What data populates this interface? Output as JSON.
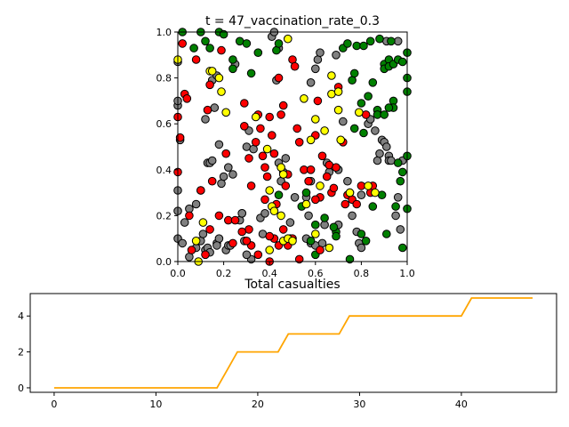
{
  "chart_data": [
    {
      "type": "scatter",
      "title": "t = 47_vaccination_rate_0.3",
      "xlim": [
        0,
        1
      ],
      "ylim": [
        0,
        1
      ],
      "xticks": [
        "0.0",
        "0.2",
        "0.4",
        "0.6",
        "0.8",
        "1.0"
      ],
      "yticks": [
        "0.0",
        "0.2",
        "0.4",
        "0.6",
        "0.8",
        "1.0"
      ],
      "colors": {
        "infected": "#ff0000",
        "vaccinated": "#008000",
        "recovered": "#ffff00",
        "susceptible": "#808080",
        "edge": "#000000"
      },
      "points": {
        "infected": [
          [
            0.02,
            0.95
          ],
          [
            0.03,
            0.73
          ],
          [
            0.04,
            0.71
          ],
          [
            0.08,
            0.88
          ],
          [
            0.13,
            0.66
          ],
          [
            0.14,
            0.77
          ],
          [
            0.15,
            0.35
          ],
          [
            0.19,
            0.92
          ],
          [
            0.21,
            0.47
          ],
          [
            0.22,
            0.18
          ],
          [
            0.24,
            0.08
          ],
          [
            0.29,
            0.69
          ],
          [
            0.29,
            0.59
          ],
          [
            0.31,
            0.45
          ],
          [
            0.32,
            0.33
          ],
          [
            0.34,
            0.52
          ],
          [
            0.35,
            0.64
          ],
          [
            0.36,
            0.58
          ],
          [
            0.37,
            0.46
          ],
          [
            0.38,
            0.41
          ],
          [
            0.39,
            0.37
          ],
          [
            0.4,
            0.63
          ],
          [
            0.41,
            0.55
          ],
          [
            0.42,
            0.47
          ],
          [
            0.44,
            0.8
          ],
          [
            0.45,
            0.64
          ],
          [
            0.46,
            0.68
          ],
          [
            0.47,
            0.33
          ],
          [
            0.48,
            0.38
          ],
          [
            0.5,
            0.88
          ],
          [
            0.51,
            0.85
          ],
          [
            0.52,
            0.58
          ],
          [
            0.53,
            0.52
          ],
          [
            0.55,
            0.4
          ],
          [
            0.58,
            0.4
          ],
          [
            0.6,
            0.55
          ],
          [
            0.61,
            0.7
          ],
          [
            0.62,
            0.28
          ],
          [
            0.63,
            0.46
          ],
          [
            0.65,
            0.37
          ],
          [
            0.66,
            0.42
          ],
          [
            0.67,
            0.3
          ],
          [
            0.68,
            0.32
          ],
          [
            0.69,
            0.41
          ],
          [
            0.7,
            0.76
          ],
          [
            0.72,
            0.52
          ],
          [
            0.73,
            0.25
          ],
          [
            0.74,
            0.29
          ],
          [
            0.76,
            0.27
          ],
          [
            0.78,
            0.25
          ],
          [
            0.8,
            0.33
          ],
          [
            0.82,
            0.64
          ],
          [
            0.84,
            0.3
          ],
          [
            0.85,
            0.33
          ],
          [
            0.31,
            0.14
          ],
          [
            0.32,
            0.07
          ],
          [
            0.35,
            0.03
          ],
          [
            0.4,
            0.0
          ],
          [
            0.42,
            0.1
          ],
          [
            0.44,
            0.07
          ],
          [
            0.46,
            0.14
          ],
          [
            0.48,
            0.07
          ],
          [
            0.5,
            0.1
          ],
          [
            0.53,
            0.01
          ],
          [
            0.57,
            0.35
          ],
          [
            0.6,
            0.27
          ],
          [
            0.05,
            0.2
          ],
          [
            0.06,
            0.05
          ],
          [
            0.1,
            0.31
          ],
          [
            0.14,
            0.14
          ],
          [
            0.18,
            0.2
          ],
          [
            0.28,
            0.13
          ],
          [
            0.3,
            0.09
          ],
          [
            0.38,
            0.27
          ],
          [
            0.4,
            0.11
          ],
          [
            0.43,
            0.25
          ],
          [
            0.12,
            0.03
          ],
          [
            0.01,
            0.54
          ],
          [
            0.0,
            0.63
          ],
          [
            0.0,
            0.39
          ],
          [
            0.62,
            0.05
          ],
          [
            0.25,
            0.18
          ]
        ],
        "vaccinated": [
          [
            0.02,
            1.0
          ],
          [
            0.07,
            0.93
          ],
          [
            0.1,
            1.0
          ],
          [
            0.12,
            0.96
          ],
          [
            0.14,
            0.93
          ],
          [
            0.18,
            1.0
          ],
          [
            0.2,
            0.99
          ],
          [
            0.24,
            0.88
          ],
          [
            0.24,
            0.84
          ],
          [
            0.27,
            0.96
          ],
          [
            0.3,
            0.95
          ],
          [
            0.32,
            0.82
          ],
          [
            0.35,
            0.91
          ],
          [
            0.43,
            0.92
          ],
          [
            0.44,
            0.95
          ],
          [
            0.72,
            0.93
          ],
          [
            0.74,
            0.95
          ],
          [
            0.78,
            0.94
          ],
          [
            0.76,
            0.79
          ],
          [
            0.77,
            0.82
          ],
          [
            0.81,
            0.94
          ],
          [
            0.84,
            0.96
          ],
          [
            0.85,
            0.78
          ],
          [
            0.88,
            0.97
          ],
          [
            0.9,
            0.86
          ],
          [
            0.9,
            0.84
          ],
          [
            0.92,
            0.88
          ],
          [
            0.92,
            0.85
          ],
          [
            0.93,
            0.96
          ],
          [
            0.94,
            0.86
          ],
          [
            0.96,
            0.88
          ],
          [
            0.98,
            0.87
          ],
          [
            1.0,
            0.91
          ],
          [
            1.0,
            0.8
          ],
          [
            1.0,
            0.74
          ],
          [
            0.94,
            0.7
          ],
          [
            0.94,
            0.67
          ],
          [
            0.92,
            0.67
          ],
          [
            0.87,
            0.66
          ],
          [
            0.87,
            0.64
          ],
          [
            0.83,
            0.72
          ],
          [
            0.8,
            0.69
          ],
          [
            0.81,
            0.56
          ],
          [
            0.77,
            0.58
          ],
          [
            0.9,
            0.64
          ],
          [
            0.96,
            0.43
          ],
          [
            0.98,
            0.39
          ],
          [
            1.0,
            0.46
          ],
          [
            0.97,
            0.35
          ],
          [
            0.95,
            0.24
          ],
          [
            1.0,
            0.23
          ],
          [
            0.98,
            0.06
          ],
          [
            0.91,
            0.12
          ],
          [
            0.89,
            0.29
          ],
          [
            0.8,
            0.12
          ],
          [
            0.75,
            0.01
          ],
          [
            0.69,
            0.13
          ],
          [
            0.69,
            0.11
          ],
          [
            0.64,
            0.19
          ],
          [
            0.6,
            0.16
          ],
          [
            0.56,
            0.3
          ],
          [
            0.44,
            0.29
          ],
          [
            0.6,
            0.03
          ],
          [
            0.68,
            0.15
          ],
          [
            0.82,
            0.09
          ],
          [
            0.85,
            0.24
          ],
          [
            0.54,
            0.24
          ],
          [
            0.58,
            0.09
          ]
        ],
        "recovered": [
          [
            0.0,
            0.88
          ],
          [
            0.14,
            0.83
          ],
          [
            0.15,
            0.83
          ],
          [
            0.18,
            0.8
          ],
          [
            0.19,
            0.74
          ],
          [
            0.21,
            0.65
          ],
          [
            0.34,
            0.63
          ],
          [
            0.39,
            0.49
          ],
          [
            0.45,
            0.41
          ],
          [
            0.46,
            0.38
          ],
          [
            0.48,
            0.97
          ],
          [
            0.55,
            0.71
          ],
          [
            0.58,
            0.53
          ],
          [
            0.6,
            0.62
          ],
          [
            0.64,
            0.57
          ],
          [
            0.67,
            0.81
          ],
          [
            0.67,
            0.73
          ],
          [
            0.7,
            0.74
          ],
          [
            0.7,
            0.66
          ],
          [
            0.71,
            0.53
          ],
          [
            0.75,
            0.3
          ],
          [
            0.79,
            0.65
          ],
          [
            0.83,
            0.33
          ],
          [
            0.86,
            0.3
          ],
          [
            0.4,
            0.31
          ],
          [
            0.41,
            0.24
          ],
          [
            0.42,
            0.22
          ],
          [
            0.45,
            0.2
          ],
          [
            0.46,
            0.09
          ],
          [
            0.48,
            0.1
          ],
          [
            0.5,
            0.09
          ],
          [
            0.56,
            0.25
          ],
          [
            0.6,
            0.12
          ],
          [
            0.62,
            0.33
          ],
          [
            0.11,
            0.17
          ],
          [
            0.08,
            0.09
          ],
          [
            0.09,
            0.0
          ],
          [
            0.4,
            0.05
          ],
          [
            0.66,
            0.06
          ]
        ],
        "susceptible": [
          [
            0.0,
            0.87
          ],
          [
            0.0,
            0.68
          ],
          [
            0.0,
            0.7
          ],
          [
            0.01,
            0.53
          ],
          [
            0.0,
            0.31
          ],
          [
            0.0,
            0.22
          ],
          [
            0.0,
            0.1
          ],
          [
            0.02,
            0.08
          ],
          [
            0.05,
            0.23
          ],
          [
            0.08,
            0.25
          ],
          [
            0.1,
            0.09
          ],
          [
            0.12,
            0.62
          ],
          [
            0.13,
            0.43
          ],
          [
            0.14,
            0.43
          ],
          [
            0.15,
            0.79
          ],
          [
            0.15,
            0.44
          ],
          [
            0.16,
            0.67
          ],
          [
            0.17,
            0.81
          ],
          [
            0.18,
            0.51
          ],
          [
            0.19,
            0.34
          ],
          [
            0.2,
            0.37
          ],
          [
            0.21,
            0.05
          ],
          [
            0.22,
            0.07
          ],
          [
            0.23,
            0.07
          ],
          [
            0.24,
            0.38
          ],
          [
            0.25,
            0.86
          ],
          [
            0.27,
            0.18
          ],
          [
            0.28,
            0.21
          ],
          [
            0.3,
            0.5
          ],
          [
            0.31,
            0.57
          ],
          [
            0.33,
            0.49
          ],
          [
            0.36,
            0.19
          ],
          [
            0.37,
            0.12
          ],
          [
            0.38,
            0.21
          ],
          [
            0.41,
            0.98
          ],
          [
            0.42,
            1.0
          ],
          [
            0.43,
            0.79
          ],
          [
            0.44,
            0.93
          ],
          [
            0.44,
            0.43
          ],
          [
            0.45,
            0.35
          ],
          [
            0.46,
            0.39
          ],
          [
            0.47,
            0.45
          ],
          [
            0.49,
            0.17
          ],
          [
            0.49,
            0.1
          ],
          [
            0.51,
            0.28
          ],
          [
            0.56,
            0.28
          ],
          [
            0.58,
            0.35
          ],
          [
            0.58,
            0.08
          ],
          [
            0.6,
            0.84
          ],
          [
            0.6,
            0.07
          ],
          [
            0.61,
            0.88
          ],
          [
            0.62,
            0.91
          ],
          [
            0.63,
            0.08
          ],
          [
            0.64,
            0.16
          ],
          [
            0.65,
            0.43
          ],
          [
            0.66,
            0.39
          ],
          [
            0.69,
            0.9
          ],
          [
            0.7,
            0.4
          ],
          [
            0.7,
            0.16
          ],
          [
            0.72,
            0.61
          ],
          [
            0.74,
            0.35
          ],
          [
            0.75,
            0.3
          ],
          [
            0.76,
            0.2
          ],
          [
            0.78,
            0.13
          ],
          [
            0.79,
            0.08
          ],
          [
            0.8,
            0.06
          ],
          [
            0.8,
            0.29
          ],
          [
            0.83,
            0.6
          ],
          [
            0.84,
            0.62
          ],
          [
            0.86,
            0.57
          ],
          [
            0.87,
            0.44
          ],
          [
            0.88,
            0.47
          ],
          [
            0.89,
            0.53
          ],
          [
            0.9,
            0.52
          ],
          [
            0.91,
            0.5
          ],
          [
            0.92,
            0.46
          ],
          [
            0.92,
            0.44
          ],
          [
            0.93,
            0.44
          ],
          [
            0.95,
            0.2
          ],
          [
            0.96,
            0.28
          ],
          [
            0.97,
            0.14
          ],
          [
            0.98,
            0.44
          ],
          [
            0.1,
            0.31
          ],
          [
            0.03,
            0.17
          ],
          [
            0.11,
            0.12
          ],
          [
            0.08,
            0.06
          ],
          [
            0.12,
            0.05
          ],
          [
            0.17,
            0.08
          ],
          [
            0.18,
            0.1
          ],
          [
            0.17,
            0.07
          ],
          [
            0.13,
            0.06
          ],
          [
            0.14,
            0.04
          ],
          [
            0.22,
            0.41
          ],
          [
            0.29,
            0.09
          ],
          [
            0.32,
            0.01
          ],
          [
            0.3,
            0.03
          ],
          [
            0.05,
            0.02
          ],
          [
            0.28,
            0.21
          ],
          [
            0.57,
            0.2
          ],
          [
            0.56,
            0.1
          ],
          [
            0.91,
            0.96
          ],
          [
            0.96,
            0.96
          ],
          [
            0.58,
            0.78
          ]
        ]
      }
    },
    {
      "type": "line",
      "title": "Total casualties",
      "xlim": [
        -2.35,
        49.35
      ],
      "ylim": [
        -0.25,
        5.25
      ],
      "xticks": [
        "0",
        "10",
        "20",
        "30",
        "40"
      ],
      "yticks": [
        "0",
        "2",
        "4"
      ],
      "line_color": "#ffa500",
      "x": [
        0,
        1,
        2,
        3,
        4,
        5,
        6,
        7,
        8,
        9,
        10,
        11,
        12,
        13,
        14,
        15,
        16,
        17,
        18,
        19,
        20,
        21,
        22,
        23,
        24,
        25,
        26,
        27,
        28,
        29,
        30,
        31,
        32,
        33,
        34,
        35,
        36,
        37,
        38,
        39,
        40,
        41,
        42,
        43,
        44,
        45,
        46,
        47
      ],
      "y": [
        0,
        0,
        0,
        0,
        0,
        0,
        0,
        0,
        0,
        0,
        0,
        0,
        0,
        0,
        0,
        0,
        0,
        1,
        2,
        2,
        2,
        2,
        2,
        3,
        3,
        3,
        3,
        3,
        3,
        4,
        4,
        4,
        4,
        4,
        4,
        4,
        4,
        4,
        4,
        4,
        4,
        5,
        5,
        5,
        5,
        5,
        5,
        5
      ]
    }
  ]
}
